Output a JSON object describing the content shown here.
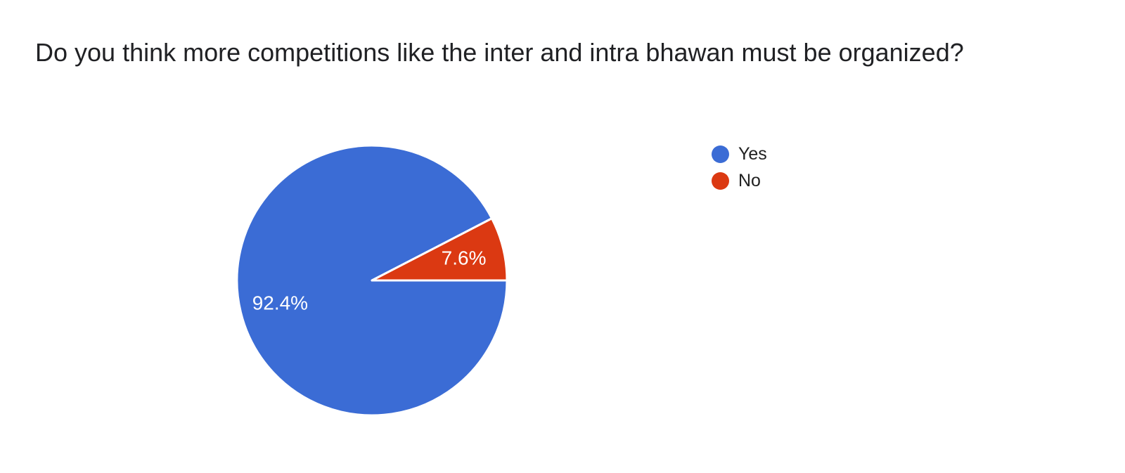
{
  "chart_data": {
    "type": "pie",
    "title": "Do you think more competitions like the inter and intra bhawan must be organized?",
    "categories": [
      "Yes",
      "No"
    ],
    "values": [
      92.4,
      7.6
    ],
    "slice_labels": [
      "92.4%",
      "7.6%"
    ],
    "colors": [
      "#3B6CD5",
      "#DB3912"
    ],
    "slice_label_color": "#FFFFFF",
    "separator_color": "#FFFFFF",
    "title_color": "#202124",
    "legend_text_color": "#212121",
    "legend_position": "right",
    "start_angle_deg": 0,
    "direction": "clockwise"
  }
}
